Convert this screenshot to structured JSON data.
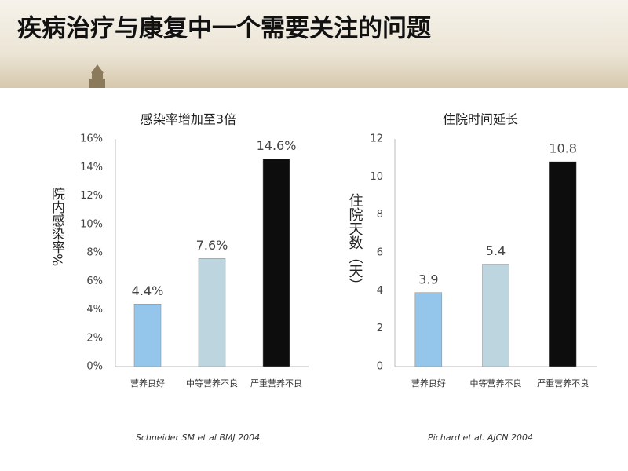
{
  "title": "疾病治疗与康复中一个需要关注的问题",
  "chart_data": [
    {
      "type": "bar",
      "title": "感染率增加至3倍",
      "y_label": "院内感染率%",
      "categories": [
        "营养良好",
        "中等营养不良",
        "严重营养不良"
      ],
      "values": [
        4.4,
        7.6,
        14.6
      ],
      "value_labels": [
        "4.4%",
        "7.6%",
        "14.6%"
      ],
      "colors": [
        "#93c6ea",
        "#bcd5de",
        "#0d0d0d"
      ],
      "ylim": [
        0,
        16
      ],
      "yticks": [
        {
          "value": 0,
          "label": "0%"
        },
        {
          "value": 2,
          "label": "2%"
        },
        {
          "value": 4,
          "label": "4%"
        },
        {
          "value": 6,
          "label": "6%"
        },
        {
          "value": 8,
          "label": "8%"
        },
        {
          "value": 10,
          "label": "10%"
        },
        {
          "value": 12,
          "label": "12%"
        },
        {
          "value": 14,
          "label": "14%"
        },
        {
          "value": 16,
          "label": "16%"
        }
      ],
      "grid": false,
      "source": "Schneider SM et al BMJ 2004"
    },
    {
      "type": "bar",
      "title": "住院时间延长",
      "y_label": "住院天数（天）",
      "categories": [
        "营养良好",
        "中等营养不良",
        "严重营养不良"
      ],
      "values": [
        3.9,
        5.4,
        10.8
      ],
      "colors": [
        "#93c6ea",
        "#bcd5de",
        "#0d0d0d"
      ],
      "ylim": [
        0,
        12
      ],
      "yticks": [
        0,
        2,
        4,
        6,
        8,
        10,
        12
      ],
      "grid": false,
      "source": "Pichard et al.  AJCN 2004"
    }
  ]
}
